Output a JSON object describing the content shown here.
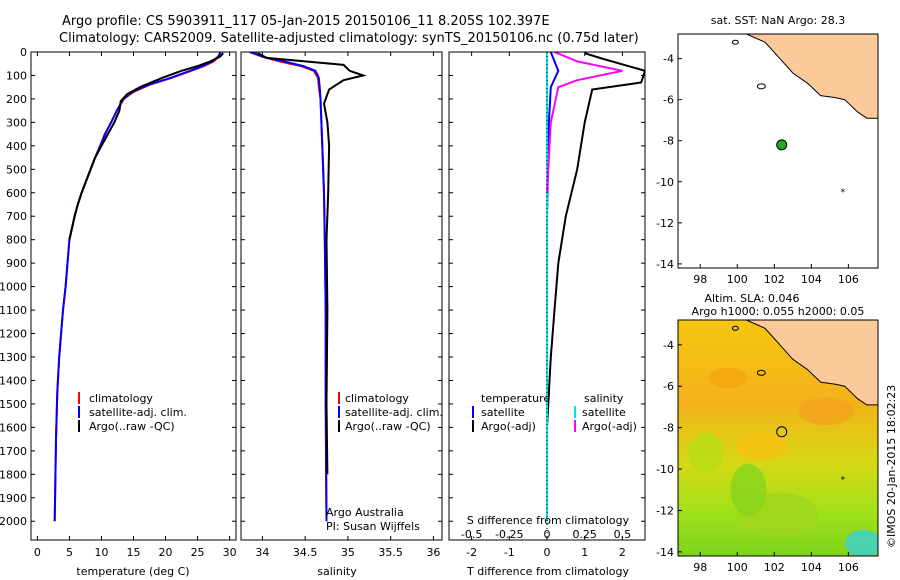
{
  "header": {
    "title_line1": "Argo profile: CS 5903911_117 05-Jan-2015 20150106_11 8.205S 102.397E",
    "title_line2": "Climatology: CARS2009. Satellite-adjusted climatology: synTS_20150106.nc (0.75d later)"
  },
  "colors": {
    "climatology": "#ff0000",
    "satellite": "#0000ff",
    "argo": "#000000",
    "sal_satellite": "#00e5ee",
    "sal_argo": "#ff00ff",
    "land": "#fcc99a"
  },
  "chart_data": [
    {
      "type": "line",
      "panel": "temperature",
      "xlabel": "temperature (deg C)",
      "ylabel": "",
      "xlim": [
        -1,
        31
      ],
      "ylim": [
        2080,
        0
      ],
      "xticks": [
        "0",
        "5",
        "10",
        "15",
        "20",
        "25",
        "30"
      ],
      "yticks": [
        "0",
        "100",
        "200",
        "300",
        "400",
        "500",
        "600",
        "700",
        "800",
        "900",
        "1000",
        "1100",
        "1200",
        "1300",
        "1400",
        "1500",
        "1600",
        "1700",
        "1800",
        "1900",
        "2000"
      ],
      "legend": [
        "climatology",
        "satellite-adj. clim.",
        "Argo(..raw -QC)"
      ],
      "series": [
        {
          "name": "climatology",
          "x": [
            28.6,
            28.3,
            27.5,
            26.0,
            24.0,
            21.0,
            17.5,
            15.0,
            13.5,
            12.4,
            11.5,
            10.5,
            9.8,
            9.0,
            8.3,
            7.6,
            6.9,
            6.3,
            5.8,
            5.4,
            5.0,
            4.7,
            4.4,
            4.0,
            3.7,
            3.4,
            3.1,
            2.9,
            2.7
          ],
          "y": [
            0,
            20,
            40,
            60,
            80,
            110,
            140,
            170,
            200,
            250,
            300,
            350,
            400,
            450,
            500,
            550,
            600,
            650,
            700,
            750,
            800,
            900,
            1000,
            1100,
            1200,
            1300,
            1450,
            1650,
            2000
          ]
        },
        {
          "name": "satellite-adj. clim.",
          "x": [
            28.6,
            28.2,
            27.3,
            25.8,
            23.8,
            20.8,
            17.3,
            14.8,
            13.4,
            12.4,
            11.5,
            10.6,
            9.8,
            9.0,
            8.3,
            7.6,
            6.9,
            6.3,
            5.8,
            5.4,
            5.0,
            4.7,
            4.4,
            4.0,
            3.7,
            3.4,
            3.1,
            2.9,
            2.7
          ],
          "y": [
            0,
            20,
            40,
            60,
            80,
            110,
            140,
            170,
            200,
            250,
            300,
            350,
            400,
            450,
            500,
            550,
            600,
            650,
            700,
            750,
            800,
            900,
            1000,
            1100,
            1200,
            1300,
            1450,
            1650,
            2000
          ]
        },
        {
          "name": "Argo(..raw -QC)",
          "x": [
            29.0,
            28.5,
            27.0,
            25.0,
            22.5,
            19.5,
            16.0,
            14.0,
            13.0,
            12.8,
            12.0,
            11.0,
            10.0,
            9.0,
            8.3,
            7.6,
            6.9,
            6.3,
            5.8,
            5.4,
            5.0
          ],
          "y": [
            5,
            20,
            40,
            60,
            80,
            110,
            150,
            180,
            210,
            250,
            300,
            350,
            400,
            450,
            500,
            550,
            600,
            650,
            700,
            750,
            800
          ]
        }
      ]
    },
    {
      "type": "line",
      "panel": "salinity",
      "xlabel": "salinity",
      "xlim": [
        33.75,
        36.1
      ],
      "ylim": [
        2080,
        0
      ],
      "xticks": [
        "34",
        "34.5",
        "35",
        "35.5",
        "36"
      ],
      "legend": [
        "climatology",
        "satellite-adj. clim.",
        "Argo(..raw -QC)"
      ],
      "series": [
        {
          "name": "climatology",
          "x": [
            33.9,
            34.0,
            34.2,
            34.45,
            34.6,
            34.65,
            34.66,
            34.68,
            34.69,
            34.7,
            34.72,
            34.73,
            34.74,
            34.74,
            34.75
          ],
          "y": [
            0,
            20,
            40,
            60,
            80,
            110,
            150,
            200,
            300,
            400,
            600,
            800,
            1100,
            1500,
            2000
          ]
        },
        {
          "name": "satellite-adj. clim.",
          "x": [
            33.85,
            34.0,
            34.25,
            34.48,
            34.62,
            34.66,
            34.67,
            34.68,
            34.69,
            34.7,
            34.72,
            34.73,
            34.74,
            34.74,
            34.75
          ],
          "y": [
            0,
            20,
            40,
            60,
            80,
            110,
            150,
            200,
            300,
            400,
            600,
            800,
            1100,
            1500,
            2000
          ]
        },
        {
          "name": "Argo(..raw -QC)",
          "x": [
            33.95,
            34.05,
            34.95,
            35.02,
            35.18,
            34.95,
            34.78,
            34.72,
            34.76,
            34.78,
            34.77,
            34.75,
            34.76,
            34.75,
            34.76
          ],
          "y": [
            5,
            25,
            55,
            80,
            100,
            120,
            160,
            220,
            300,
            400,
            600,
            800,
            1100,
            1500,
            1800
          ]
        }
      ]
    },
    {
      "type": "line",
      "panel": "difference",
      "xlabel": "T difference from climatology",
      "xlabel_top": "S difference from climatology",
      "xlim": [
        -2.6,
        2.6
      ],
      "ylim": [
        2080,
        0
      ],
      "xticks": [
        "-2",
        "-1",
        "0",
        "1",
        "2"
      ],
      "xticks_top": [
        "-0.5",
        "-0.25",
        "0",
        "0.25",
        "0.5"
      ],
      "legend_temperature_title": "temperature",
      "legend_salinity_title": "salinity",
      "legend": [
        "satellite",
        "Argo(-adj)",
        "satellite",
        "Argo(-adj)"
      ],
      "series": [
        {
          "name": "satellite",
          "x": [
            0.1,
            0.2,
            0.3,
            0.1,
            0.05,
            0.0,
            0.0,
            0.0
          ],
          "y": [
            0,
            40,
            80,
            150,
            300,
            700,
            1200,
            2000
          ]
        },
        {
          "name": "Argo(-adj)",
          "x": [
            1.0,
            1.5,
            2.6,
            2.5,
            1.2,
            1.0,
            0.8,
            0.5,
            0.3,
            0.2,
            0.1,
            0.0
          ],
          "y": [
            5,
            30,
            80,
            130,
            160,
            300,
            500,
            700,
            900,
            1100,
            1300,
            1600
          ]
        },
        {
          "name": "satellite",
          "x": [
            0.0,
            0.0,
            0.0,
            0.0,
            0.0,
            0.0,
            0.0
          ],
          "y": [
            0,
            150,
            400,
            800,
            1200,
            1600,
            2000
          ]
        },
        {
          "name": "Argo(-adj)",
          "x": [
            0.2,
            0.8,
            2.0,
            0.8,
            0.3,
            0.1,
            0.0
          ],
          "y": [
            0,
            40,
            80,
            120,
            150,
            300,
            600
          ]
        }
      ]
    },
    {
      "type": "scatter",
      "panel": "sst_map",
      "title": "sat. SST: NaN Argo: 28.3",
      "xlim": [
        96.8,
        107.6
      ],
      "ylim": [
        -14.2,
        -2.8
      ],
      "xticks": [
        "98",
        "100",
        "102",
        "104",
        "106"
      ],
      "yticks": [
        "-4",
        "-6",
        "-8",
        "-10",
        "-12",
        "-14"
      ],
      "points": [
        {
          "lon": 102.4,
          "lat": -8.2
        }
      ]
    },
    {
      "type": "heatmap",
      "panel": "sla_map",
      "title_line1": "Altim. SLA: 0.046",
      "title_line2": "Argo h1000: 0.055 h2000: 0.05",
      "xlim": [
        96.8,
        107.6
      ],
      "ylim": [
        -14.2,
        -2.8
      ],
      "xticks": [
        "98",
        "100",
        "102",
        "104",
        "106"
      ],
      "yticks": [
        "-4",
        "-6",
        "-8",
        "-10",
        "-12",
        "-14"
      ],
      "points": [
        {
          "lon": 102.4,
          "lat": -8.2
        }
      ]
    }
  ],
  "legend_labels": {
    "climatology": "climatology",
    "satellite_adj": "satellite-adj. clim.",
    "argo_raw": "Argo(..raw -QC)"
  },
  "credits": {
    "institution": "Argo Australia",
    "pi": "PI: Susan Wijffels",
    "stamp": "©IMOS 20-Jan-2015 18:02:23"
  }
}
